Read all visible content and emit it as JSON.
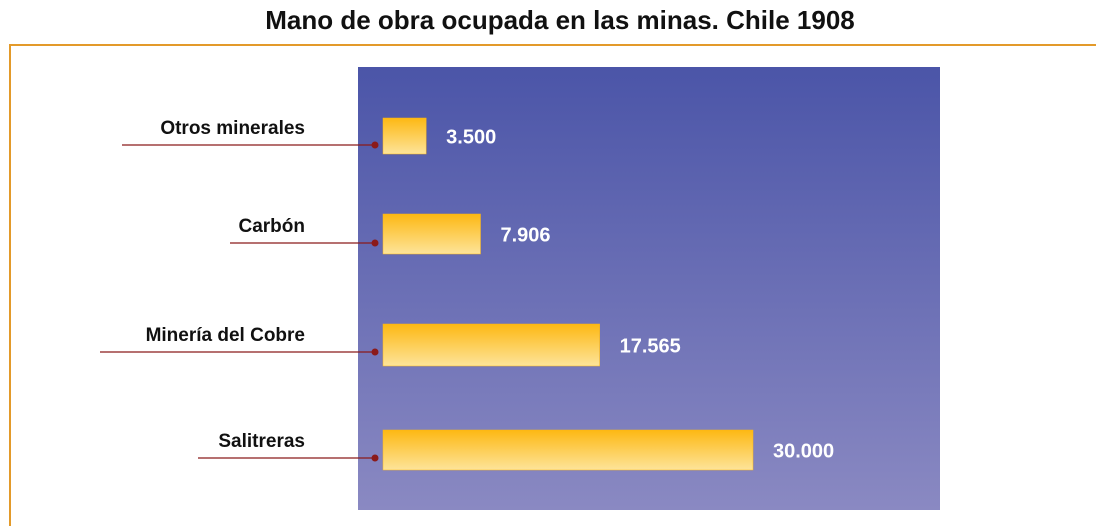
{
  "chart_data": {
    "type": "bar",
    "orientation": "horizontal",
    "title": "Mano de obra ocupada en las minas. Chile 1908",
    "categories": [
      "Otros minerales",
      "Carbón",
      "Minería del Cobre",
      "Salitreras"
    ],
    "values": [
      3500,
      7906,
      17565,
      30000
    ],
    "value_labels": [
      "3.500",
      "7.906",
      "17.565",
      "30.000"
    ],
    "color": "#fdb813"
  }
}
